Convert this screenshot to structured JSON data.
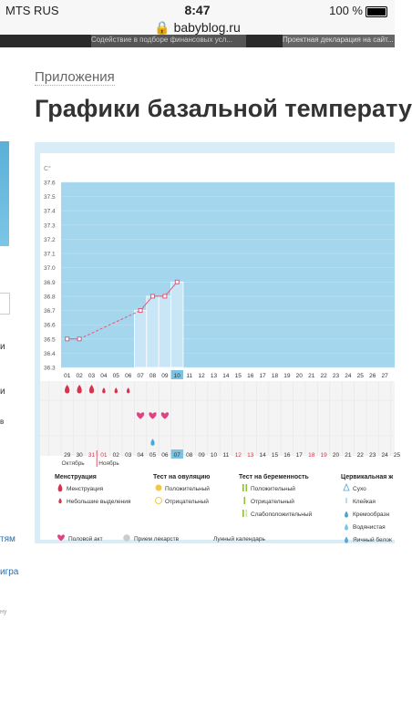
{
  "status": {
    "carrier": "MTS RUS",
    "time": "8:47",
    "battery": "100 %"
  },
  "browser": {
    "url": "babyblog.ru"
  },
  "banner": {
    "item1": "Содействие в подборе финансовых усл...",
    "item2": "Проектная декларация на сайт..."
  },
  "page": {
    "breadcrumb": "Приложения",
    "title": "Графики базальной температу"
  },
  "sidebar_fragments": [
    "и",
    "и",
    "в",
    "тям",
    "игра",
    "ну"
  ],
  "chart_data": {
    "type": "line",
    "ylabel": "C°",
    "ylim": [
      36.3,
      37.6
    ],
    "yticks": [
      "37.6",
      "37.5",
      "37.4",
      "37.3",
      "37.2",
      "37.1",
      "37.0",
      "36.9",
      "36.8",
      "36.7",
      "36.6",
      "36.5",
      "36.4",
      "36.3"
    ],
    "cycle_days": [
      "01",
      "02",
      "03",
      "04",
      "05",
      "06",
      "07",
      "08",
      "09",
      "10",
      "11",
      "12",
      "13",
      "14",
      "15",
      "16",
      "17",
      "18",
      "19",
      "20",
      "21",
      "22",
      "23",
      "24",
      "25",
      "26",
      "27"
    ],
    "current_day_index": 9,
    "series": [
      {
        "name": "",
        "days": [
          1,
          2,
          7,
          8,
          9,
          10
        ],
        "values": [
          36.5,
          36.5,
          36.7,
          36.8,
          36.8,
          36.9
        ]
      }
    ],
    "bars_from_day": 7,
    "calendar_dates": [
      "29",
      "30",
      "31",
      "01",
      "02",
      "03",
      "04",
      "05",
      "06",
      "07",
      "08",
      "09",
      "10",
      "11",
      "12",
      "13",
      "14",
      "15",
      "16",
      "17",
      "18",
      "19",
      "20",
      "21",
      "22",
      "23",
      "24",
      "25"
    ],
    "red_date_indices": [
      2,
      3,
      14,
      15,
      20,
      21
    ],
    "months": [
      "Октябрь",
      "Ноябрь"
    ],
    "menstruation_days": [
      1,
      2,
      3
    ],
    "light_flow_days": [
      4,
      5,
      6
    ],
    "intercourse_days": [
      7,
      8,
      9
    ],
    "cervical_watery_days": [
      8
    ]
  },
  "legend": {
    "menstruation": {
      "title": "Менструация",
      "items": [
        "Менструация",
        "Небольшие выделения"
      ]
    },
    "ovulation": {
      "title": "Тест на овуляцию",
      "items": [
        "Положительный",
        "Отрицательный"
      ]
    },
    "pregnancy": {
      "title": "Тест на беременность",
      "items": [
        "Положительный",
        "Отрицательный",
        "Слабоположительный"
      ]
    },
    "cervical": {
      "title": "Цервикальная ж",
      "items": [
        "Сухо",
        "Клейкая",
        "Кремообразн",
        "Водянистая",
        "Яичный белок"
      ]
    },
    "other": [
      "Половой акт",
      "Прием лекарств",
      "Лунный календарь"
    ]
  },
  "colors": {
    "bar": "#c9e6f6",
    "plot_bg": "#a4d6ee",
    "line": "#e05a7a",
    "blood": "#d6334e",
    "heart": "#e0437f",
    "accent": "#4aa6d4"
  }
}
